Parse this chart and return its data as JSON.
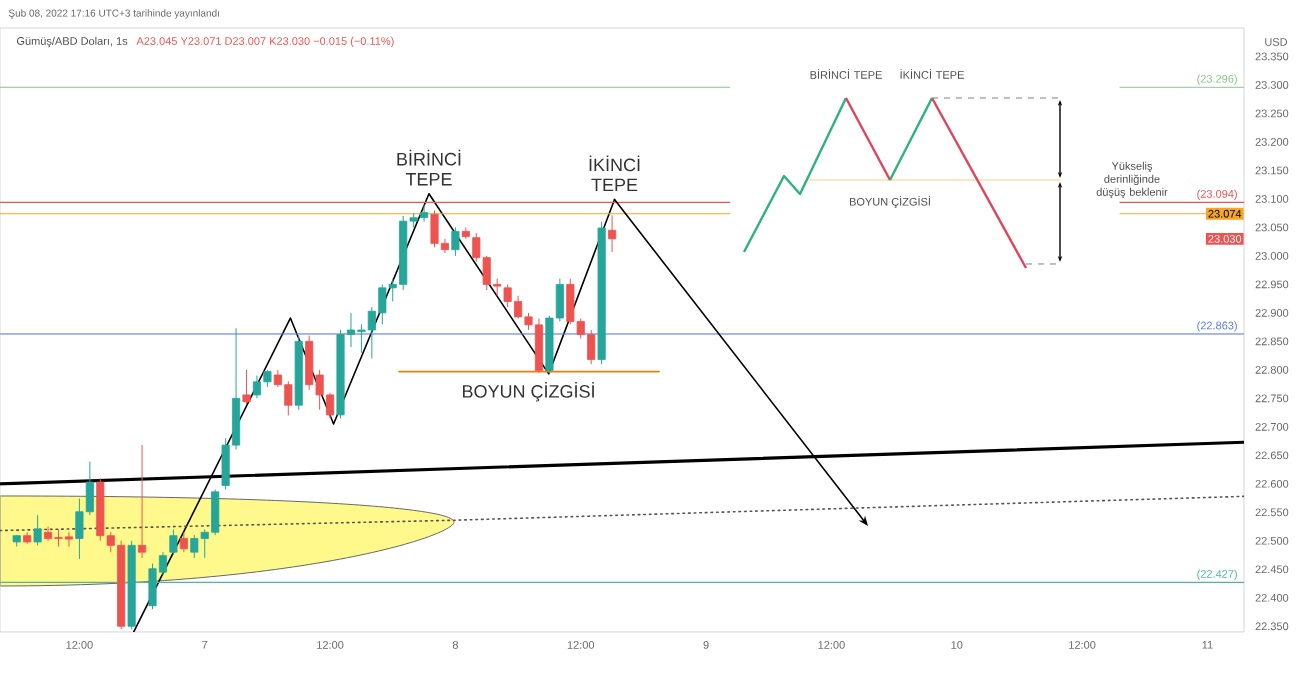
{
  "chart_data": {
    "type": "candlestick",
    "title": "Gümüş/ABD Doları, 1s",
    "subtitle": "A23.045 Y23.071 D23.007 K23.030 −0.015 (−0.11%)",
    "ylabel": "USD",
    "x": [
      "2022-02-06T06:00",
      "2022-02-06T07:00",
      "2022-02-06T08:00",
      "2022-02-06T09:00",
      "2022-02-06T10:00",
      "2022-02-06T11:00",
      "2022-02-06T12:00",
      "2022-02-06T13:00",
      "2022-02-06T14:00",
      "2022-02-06T15:00",
      "2022-02-06T16:00",
      "2022-02-06T17:00",
      "2022-02-06T18:00",
      "2022-02-06T19:00",
      "2022-02-06T20:00",
      "2022-02-06T21:00",
      "2022-02-06T22:00",
      "2022-02-06T23:00",
      "2022-02-07T00:00",
      "2022-02-07T01:00",
      "2022-02-07T02:00",
      "2022-02-07T03:00",
      "2022-02-07T04:00",
      "2022-02-07T05:00",
      "2022-02-07T06:00",
      "2022-02-07T07:00",
      "2022-02-07T08:00",
      "2022-02-07T09:00",
      "2022-02-07T10:00",
      "2022-02-07T11:00",
      "2022-02-07T12:00",
      "2022-02-07T13:00",
      "2022-02-07T14:00",
      "2022-02-07T15:00",
      "2022-02-07T16:00",
      "2022-02-07T17:00",
      "2022-02-07T18:00",
      "2022-02-07T19:00",
      "2022-02-07T20:00",
      "2022-02-07T21:00",
      "2022-02-07T22:00",
      "2022-02-07T23:00",
      "2022-02-08T00:00",
      "2022-02-08T01:00",
      "2022-02-08T02:00",
      "2022-02-08T03:00",
      "2022-02-08T04:00",
      "2022-02-08T05:00",
      "2022-02-08T06:00",
      "2022-02-08T07:00",
      "2022-02-08T08:00",
      "2022-02-08T09:00",
      "2022-02-08T10:00",
      "2022-02-08T11:00",
      "2022-02-08T12:00",
      "2022-02-08T13:00",
      "2022-02-08T14:00",
      "2022-02-08T15:00"
    ],
    "ohlc": [
      [
        22.498,
        22.51,
        22.49,
        22.509
      ],
      [
        22.509,
        22.515,
        22.495,
        22.498
      ],
      [
        22.498,
        22.545,
        22.492,
        22.521
      ],
      [
        22.515,
        22.525,
        22.5,
        22.504
      ],
      [
        22.506,
        22.52,
        22.49,
        22.504
      ],
      [
        22.507,
        22.515,
        22.49,
        22.503
      ],
      [
        22.504,
        22.574,
        22.468,
        22.551
      ],
      [
        22.551,
        22.639,
        22.545,
        22.603
      ],
      [
        22.603,
        22.61,
        22.5,
        22.509
      ],
      [
        22.509,
        22.515,
        22.48,
        22.492
      ],
      [
        22.492,
        22.5,
        22.345,
        22.35
      ],
      [
        22.35,
        22.5,
        22.345,
        22.492
      ],
      [
        22.492,
        22.668,
        22.47,
        22.48
      ],
      [
        22.386,
        22.46,
        22.38,
        22.451
      ],
      [
        22.445,
        22.48,
        22.44,
        22.474
      ],
      [
        22.48,
        22.52,
        22.475,
        22.509
      ],
      [
        22.504,
        22.515,
        22.48,
        22.486
      ],
      [
        22.48,
        22.51,
        22.47,
        22.504
      ],
      [
        22.504,
        22.52,
        22.47,
        22.515
      ],
      [
        22.515,
        22.59,
        22.51,
        22.586
      ],
      [
        22.597,
        22.68,
        22.59,
        22.668
      ],
      [
        22.668,
        22.873,
        22.66,
        22.75
      ],
      [
        22.756,
        22.8,
        22.74,
        22.744
      ],
      [
        22.756,
        22.79,
        22.75,
        22.779
      ],
      [
        22.779,
        22.8,
        22.77,
        22.797
      ],
      [
        22.791,
        22.8,
        22.77,
        22.774
      ],
      [
        22.774,
        22.78,
        22.72,
        22.738
      ],
      [
        22.738,
        22.86,
        22.73,
        22.85
      ],
      [
        22.85,
        22.86,
        22.765,
        22.774
      ],
      [
        22.791,
        22.8,
        22.73,
        22.756
      ],
      [
        22.756,
        22.76,
        22.715,
        22.721
      ],
      [
        22.721,
        22.87,
        22.715,
        22.862
      ],
      [
        22.862,
        22.9,
        22.84,
        22.87
      ],
      [
        22.867,
        22.88,
        22.83,
        22.87
      ],
      [
        22.87,
        22.91,
        22.82,
        22.903
      ],
      [
        22.9,
        22.95,
        22.88,
        22.944
      ],
      [
        22.944,
        22.96,
        22.92,
        22.95
      ],
      [
        22.95,
        23.07,
        22.94,
        23.061
      ],
      [
        23.061,
        23.075,
        23.05,
        23.067
      ],
      [
        23.067,
        23.09,
        23.06,
        23.076
      ],
      [
        23.073,
        23.08,
        23.015,
        23.022
      ],
      [
        23.022,
        23.03,
        23.005,
        23.011
      ],
      [
        23.011,
        23.05,
        23.0,
        23.043
      ],
      [
        23.043,
        23.05,
        23.03,
        23.034
      ],
      [
        23.032,
        23.04,
        22.99,
        22.997
      ],
      [
        22.997,
        23.0,
        22.94,
        22.95
      ],
      [
        22.95,
        22.96,
        22.93,
        22.947
      ],
      [
        22.944,
        22.95,
        22.91,
        22.92
      ],
      [
        22.92,
        22.93,
        22.89,
        22.893
      ],
      [
        22.893,
        22.9,
        22.87,
        22.879
      ],
      [
        22.879,
        22.89,
        22.795,
        22.799
      ],
      [
        22.799,
        22.895,
        22.795,
        22.891
      ],
      [
        22.891,
        22.96,
        22.885,
        22.95
      ],
      [
        22.95,
        22.96,
        22.88,
        22.885
      ],
      [
        22.885,
        22.89,
        22.855,
        22.862
      ],
      [
        22.862,
        22.87,
        22.81,
        22.818
      ],
      [
        22.818,
        23.06,
        22.81,
        23.049
      ],
      [
        23.045,
        23.071,
        23.007,
        23.03
      ]
    ],
    "series": [
      {
        "type": "line",
        "color": "#000000",
        "x": [
          "2022-02-06T17:12",
          "2022-02-07T08:12",
          "2022-02-07T12:20",
          "2022-02-07T21:28",
          "2022-02-08T08:56",
          "2022-02-08T15:14"
        ],
        "values": [
          22.34,
          22.891,
          22.705,
          23.109,
          22.793,
          23.099
        ]
      },
      {
        "type": "line",
        "color": "#000000",
        "x": [
          "2022-02-06T04:24",
          "2022-02-11T03:30"
        ],
        "values": [
          22.6,
          22.673
        ]
      },
      {
        "type": "line",
        "color": "#555555",
        "line_style": "dotted",
        "x": [
          "2022-02-06T04:24",
          "2022-02-07T23:42",
          "2022-02-11T03:30"
        ],
        "values": [
          22.518,
          22.536,
          22.578
        ]
      },
      {
        "type": "line",
        "color": "#f57c00",
        "x": [
          "2022-02-07T18:36",
          "2022-02-08T19:30"
        ],
        "values": [
          22.797,
          22.797
        ]
      }
    ],
    "ref_lines": [
      {
        "axis": "y",
        "value": 23.296,
        "label": "(23.296)",
        "color": "#81c784"
      },
      {
        "axis": "y",
        "value": 23.094,
        "label": "(23.094)",
        "color": "#ef5350"
      },
      {
        "axis": "y",
        "value": 23.074,
        "label": "23.074",
        "color": "#f5a623"
      },
      {
        "axis": "y",
        "value": 22.863,
        "label": "(22.863)",
        "color": "#5b7bd5"
      },
      {
        "axis": "y",
        "value": 22.427,
        "label": "(22.427)",
        "color": "#4db6ac"
      }
    ],
    "annotations": [
      "Şub 08, 2022 17:16 UTC+3 tarihinde yayınlandı",
      {
        "text": "BİRİNCİ TEPE",
        "x": "2022-02-07T21:28",
        "y": 23.109
      },
      {
        "text": "İKİNCİ TEPE",
        "x": "2022-02-08T15:14",
        "y": 23.099
      },
      {
        "text": "BOYUN ÇİZGİSİ",
        "x": "2022-02-08T07:00",
        "y": 22.797
      },
      {
        "text": "23.030",
        "y": 23.03
      },
      "BİRİNCİ TEPE",
      "İKİNCİ TEPE",
      "BOYUN ÇİZGİSİ",
      "Yükseliş derinliğinde düşüş beklenir"
    ],
    "xlim": [
      "2022-02-06T04:24",
      "2022-02-11T03:30"
    ],
    "ylim": [
      22.34,
      23.4
    ],
    "xticks": [
      {
        "value": "2022-02-06T12:00",
        "label": "12:00"
      },
      {
        "value": "2022-02-07",
        "label": "7"
      },
      {
        "value": "2022-02-07T12:00",
        "label": "12:00"
      },
      {
        "value": "2022-02-08",
        "label": "8"
      },
      {
        "value": "2022-02-08T12:00",
        "label": "12:00"
      },
      {
        "value": "2022-02-09",
        "label": "9"
      },
      {
        "value": "2022-02-09T12:00",
        "label": "12:00"
      },
      {
        "value": "2022-02-10",
        "label": "10"
      },
      {
        "value": "2022-02-10T12:00",
        "label": "12:00"
      },
      {
        "value": "2022-02-11",
        "label": "11"
      }
    ],
    "yticks": [
      {
        "value": 22.35,
        "label": "22.350"
      },
      {
        "value": 22.4,
        "label": "22.400"
      },
      {
        "value": 22.45,
        "label": "22.450"
      },
      {
        "value": 22.5,
        "label": "22.500"
      },
      {
        "value": 22.55,
        "label": "22.550"
      },
      {
        "value": 22.6,
        "label": "22.600"
      },
      {
        "value": 22.65,
        "label": "22.650"
      },
      {
        "value": 22.7,
        "label": "22.700"
      },
      {
        "value": 22.75,
        "label": "22.750"
      },
      {
        "value": 22.8,
        "label": "22.800"
      },
      {
        "value": 22.85,
        "label": "22.850"
      },
      {
        "value": 22.9,
        "label": "22.900"
      },
      {
        "value": 22.95,
        "label": "22.950"
      },
      {
        "value": 23.0,
        "label": "23.000"
      },
      {
        "value": 23.05,
        "label": "23.050"
      },
      {
        "value": 23.1,
        "label": "23.100"
      },
      {
        "value": 23.15,
        "label": "23.150"
      },
      {
        "value": 23.2,
        "label": "23.200"
      },
      {
        "value": 23.25,
        "label": "23.250"
      },
      {
        "value": 23.3,
        "label": "23.300"
      },
      {
        "value": 23.35,
        "label": "23.350"
      }
    ]
  }
}
